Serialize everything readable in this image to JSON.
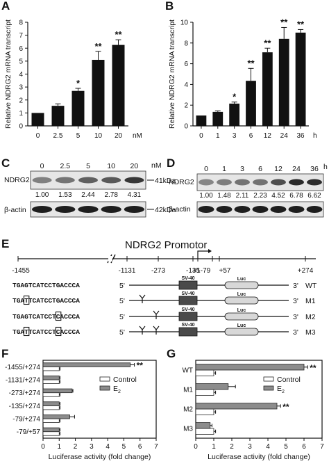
{
  "panels": {
    "a": "A",
    "b": "B",
    "c": "C",
    "d": "D",
    "e": "E",
    "f": "F",
    "g": "G"
  },
  "chart_data": [
    {
      "id": "A",
      "type": "bar",
      "categories": [
        "0",
        "2.5",
        "5",
        "10",
        "20"
      ],
      "values": [
        1.0,
        1.55,
        2.7,
        5.1,
        6.25
      ],
      "errors": [
        0.0,
        0.15,
        0.2,
        0.65,
        0.4
      ],
      "significance": [
        "",
        "",
        "*",
        "**",
        "**"
      ],
      "ylabel": "Relative NDRG2 mRNA transcript",
      "xunit": "nM",
      "ylim": [
        0,
        8
      ],
      "yticks": [
        0,
        1,
        2,
        3,
        4,
        5,
        6,
        7,
        8
      ]
    },
    {
      "id": "B",
      "type": "bar",
      "categories": [
        "0",
        "1",
        "3",
        "6",
        "12",
        "24",
        "36"
      ],
      "values": [
        1.0,
        1.35,
        2.15,
        4.35,
        7.1,
        8.4,
        9.0
      ],
      "errors": [
        0.0,
        0.1,
        0.15,
        1.2,
        0.4,
        1.1,
        0.3
      ],
      "significance": [
        "",
        "",
        "*",
        "**",
        "**",
        "**",
        "**"
      ],
      "ylabel": "Relative NDRG2 mRNA transcript",
      "xunit": "h",
      "ylim": [
        0,
        10
      ],
      "yticks": [
        0,
        2,
        4,
        6,
        8,
        10
      ]
    },
    {
      "id": "F",
      "type": "bar",
      "orientation": "horizontal",
      "categories": [
        "-1455/+274",
        "-1131/+274",
        "-273/+274",
        "-135/+274",
        "-79/+274",
        "-79/+57"
      ],
      "series": [
        {
          "name": "Control",
          "values": [
            1.0,
            1.0,
            1.0,
            1.0,
            1.0,
            1.0
          ],
          "errors": [
            0.05,
            0.05,
            0.05,
            0.05,
            0.05,
            0.05
          ]
        },
        {
          "name": "E2",
          "values": [
            5.4,
            1.0,
            1.8,
            1.0,
            1.65,
            1.0
          ],
          "errors": [
            0.25,
            0.05,
            0.05,
            0.05,
            0.3,
            0.05
          ]
        }
      ],
      "significance": [
        "**",
        "",
        "",
        "",
        "",
        ""
      ],
      "xlabel": "Luciferase activity (fold change)",
      "xlim": [
        0,
        7
      ],
      "xticks": [
        0,
        1,
        2,
        3,
        4,
        5,
        6,
        7
      ]
    },
    {
      "id": "G",
      "type": "bar",
      "orientation": "horizontal",
      "categories": [
        "WT",
        "M1",
        "M2",
        "M3"
      ],
      "series": [
        {
          "name": "Control",
          "values": [
            1.0,
            1.0,
            1.0,
            1.0
          ],
          "errors": [
            0.1,
            0.1,
            0.1,
            0.1
          ]
        },
        {
          "name": "E2",
          "values": [
            6.0,
            1.8,
            4.5,
            0.8
          ],
          "errors": [
            0.2,
            0.4,
            0.2,
            0.1
          ]
        }
      ],
      "significance": [
        "**",
        "",
        "**",
        ""
      ],
      "xlabel": "Luciferase activity (fold change)",
      "xlim": [
        0,
        7
      ],
      "xticks": [
        0,
        1,
        2,
        3,
        4,
        5,
        6,
        7
      ]
    }
  ],
  "blot_c": {
    "lanes": [
      "0",
      "2.5",
      "5",
      "10",
      "20"
    ],
    "unit": "nM",
    "row1": "NDRG2",
    "row2": "β-actin",
    "mw1": "41kDa",
    "mw2": "42kDa",
    "quant": [
      "1.00",
      "1.53",
      "2.44",
      "2.78",
      "4.31"
    ]
  },
  "blot_d": {
    "lanes": [
      "0",
      "1",
      "3",
      "6",
      "12",
      "24",
      "36"
    ],
    "unit": "h",
    "row1": "NDRG2",
    "row2": "β-actin",
    "quant": [
      "1.00",
      "1.48",
      "2.11",
      "2.23",
      "4.52",
      "6.78",
      "6.62"
    ]
  },
  "promoter": {
    "title": "NDRG2 Promotor",
    "positions": [
      "-1455",
      "-1131",
      "-273",
      "-135",
      "-79",
      "+1",
      "+57",
      "+274"
    ],
    "sv40": "SV-40",
    "luc": "Luc",
    "five": "5'",
    "three": "3'",
    "constructs": [
      {
        "name": "WT",
        "seq_a": "TGAGTCATCCTGACCCA"
      },
      {
        "name": "M1",
        "seq_pre": "TGA",
        "seq_box": "T",
        "seq_post": "TCATCCTGACCCA"
      },
      {
        "name": "M2",
        "seq_pre": "TGAGTCATCCT",
        "seq_box": "C",
        "seq_post": "ACCCA"
      },
      {
        "name": "M3",
        "seq_pre": "TGA",
        "seq_box": "T",
        "seq_mid": "TCATCCT",
        "seq_box2": "C",
        "seq_post": "ACCCA"
      }
    ]
  }
}
